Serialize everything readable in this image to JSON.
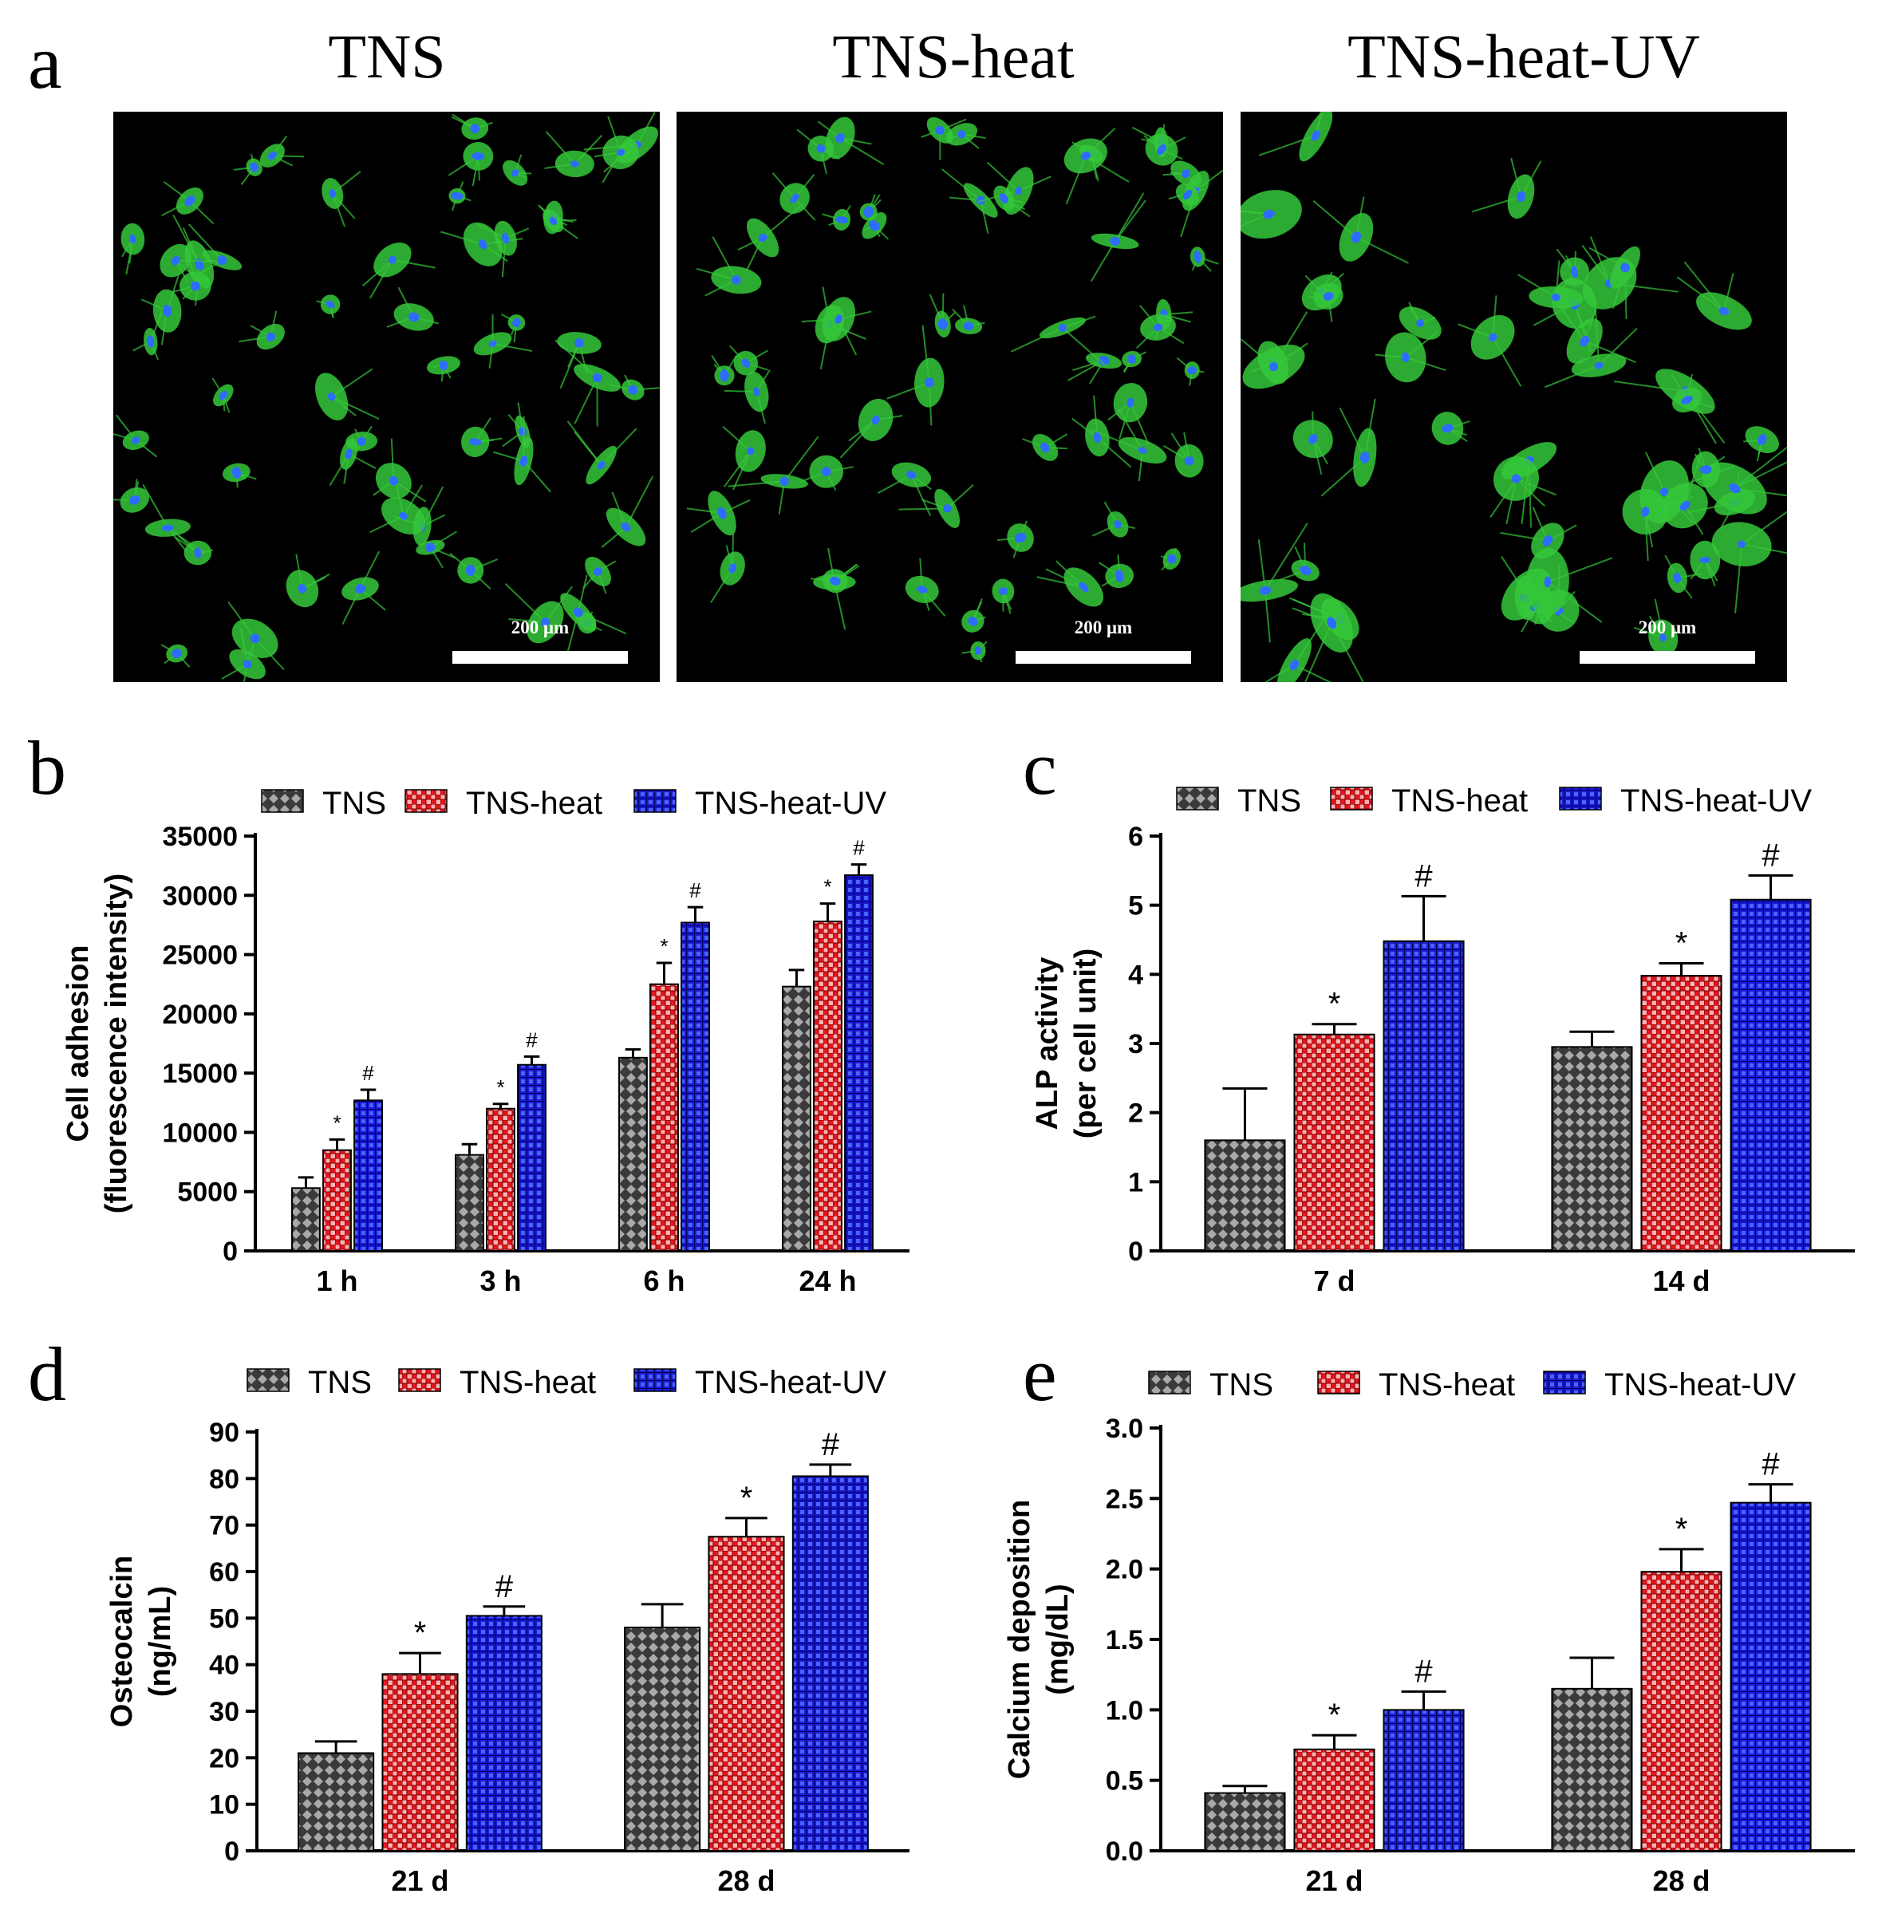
{
  "panel_a": {
    "letter": "a",
    "titles": [
      "TNS",
      "TNS-heat",
      "TNS-heat-UV"
    ],
    "scale_bar": "200 μm"
  },
  "colors": {
    "TNS": "#555555",
    "TNS-heat": "#e8141e",
    "TNS-heat-UV": "#1a1ad6",
    "cytoskeleton": "#35c83a",
    "nucleus": "#2d6cff"
  },
  "chart_data": [
    {
      "panel": "b",
      "type": "bar",
      "categories": [
        "1 h",
        "3 h",
        "6 h",
        "24 h"
      ],
      "series": [
        {
          "name": "TNS",
          "values": [
            5300,
            8100,
            16300,
            22300
          ],
          "errors": [
            900,
            900,
            700,
            1400
          ]
        },
        {
          "name": "TNS-heat",
          "values": [
            8500,
            12000,
            22500,
            27800
          ],
          "errors": [
            900,
            400,
            1800,
            1500
          ]
        },
        {
          "name": "TNS-heat-UV",
          "values": [
            12700,
            15700,
            27700,
            31700
          ],
          "errors": [
            900,
            700,
            1300,
            900
          ]
        }
      ],
      "annotations": [
        [
          "*",
          "*",
          "*",
          "*"
        ],
        [
          "#",
          "#",
          "#",
          "#"
        ]
      ],
      "ylabel": "Cell adhesion",
      "ylabel2": "(fluorescence intensity)",
      "ylim": [
        0,
        35000
      ],
      "yticks": [
        0,
        5000,
        10000,
        15000,
        20000,
        25000,
        30000,
        35000
      ],
      "ytick_labels": [
        "0",
        "5000",
        "10000",
        "15000",
        "20000",
        "25000",
        "30000",
        "35000"
      ],
      "legend": "top"
    },
    {
      "panel": "c",
      "type": "bar",
      "categories": [
        "7 d",
        "14 d"
      ],
      "series": [
        {
          "name": "TNS",
          "values": [
            1.6,
            2.95
          ],
          "errors": [
            0.75,
            0.22
          ]
        },
        {
          "name": "TNS-heat",
          "values": [
            3.13,
            3.98
          ],
          "errors": [
            0.15,
            0.18
          ]
        },
        {
          "name": "TNS-heat-UV",
          "values": [
            4.48,
            5.08
          ],
          "errors": [
            0.65,
            0.35
          ]
        }
      ],
      "annotations": [
        [
          "*",
          "*"
        ],
        [
          "#",
          "#"
        ]
      ],
      "ylabel": "ALP activity",
      "ylabel2": "(per cell unit)",
      "ylim": [
        0,
        6
      ],
      "yticks": [
        0,
        1,
        2,
        3,
        4,
        5,
        6
      ],
      "ytick_labels": [
        "0",
        "1",
        "2",
        "3",
        "4",
        "5",
        "6"
      ],
      "legend": "top"
    },
    {
      "panel": "d",
      "type": "bar",
      "categories": [
        "21 d",
        "28 d"
      ],
      "series": [
        {
          "name": "TNS",
          "values": [
            21,
            48
          ],
          "errors": [
            2.5,
            5
          ]
        },
        {
          "name": "TNS-heat",
          "values": [
            38,
            67.5
          ],
          "errors": [
            4.5,
            4
          ]
        },
        {
          "name": "TNS-heat-UV",
          "values": [
            50.5,
            80.5
          ],
          "errors": [
            2,
            2.5
          ]
        }
      ],
      "annotations": [
        [
          "*",
          "*"
        ],
        [
          "#",
          "#"
        ]
      ],
      "ylabel": "Osteocalcin",
      "ylabel2": "(ng/mL)",
      "ylim": [
        0,
        90
      ],
      "yticks": [
        0,
        10,
        20,
        30,
        40,
        50,
        60,
        70,
        80,
        90
      ],
      "ytick_labels": [
        "0",
        "10",
        "20",
        "30",
        "40",
        "50",
        "60",
        "70",
        "80",
        "90"
      ],
      "legend": "top"
    },
    {
      "panel": "e",
      "type": "bar",
      "categories": [
        "21 d",
        "28 d"
      ],
      "series": [
        {
          "name": "TNS",
          "values": [
            0.41,
            1.15
          ],
          "errors": [
            0.05,
            0.22
          ]
        },
        {
          "name": "TNS-heat",
          "values": [
            0.72,
            1.98
          ],
          "errors": [
            0.1,
            0.16
          ]
        },
        {
          "name": "TNS-heat-UV",
          "values": [
            1.0,
            2.47
          ],
          "errors": [
            0.13,
            0.13
          ]
        }
      ],
      "annotations": [
        [
          "*",
          "*"
        ],
        [
          "#",
          "#"
        ]
      ],
      "ylabel": "Calcium deposition",
      "ylabel2": "(mg/dL)",
      "ylim": [
        0,
        3
      ],
      "yticks": [
        0,
        0.5,
        1,
        1.5,
        2,
        2.5,
        3
      ],
      "ytick_labels": [
        "0.0",
        "0.5",
        "1.0",
        "1.5",
        "2.0",
        "2.5",
        "3.0"
      ],
      "legend": "top"
    }
  ]
}
